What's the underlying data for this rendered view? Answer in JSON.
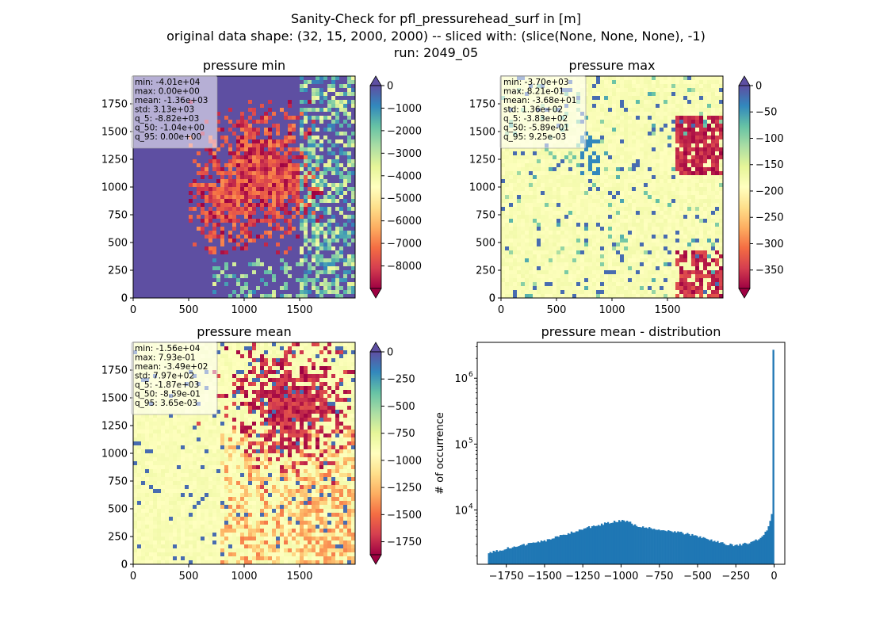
{
  "figure": {
    "suptitle_lines": [
      "Sanity-Check for pfl_pressurehead_surf in [m]",
      "original data shape: (32, 15, 2000, 2000) -- sliced with: (slice(None, None, None), -1)",
      "run: 2049_05"
    ]
  },
  "chart_data": [
    {
      "type": "heatmap",
      "title": "pressure min",
      "xlim": [
        0,
        2000
      ],
      "ylim": [
        0,
        2000
      ],
      "xticks": [
        0,
        500,
        1000,
        1500
      ],
      "yticks": [
        0,
        250,
        500,
        750,
        1000,
        1250,
        1500,
        1750
      ],
      "colormap": "Spectral",
      "colorbar": {
        "vmin": -9000,
        "vmax": 0,
        "ticks": [
          0,
          -1000,
          -2000,
          -3000,
          -4000,
          -5000,
          -6000,
          -7000,
          -8000
        ],
        "extend": "both"
      },
      "stats": [
        "min: -4.01e+04",
        "max: 0.00e+00",
        "mean: -1.36e+03",
        "std: 3.13e+03",
        "q_5: -8.82e+03",
        "q_50: -1.04e+00",
        "q_95: 0.00e+00"
      ]
    },
    {
      "type": "heatmap",
      "title": "pressure max",
      "xlim": [
        0,
        2000
      ],
      "ylim": [
        0,
        2000
      ],
      "xticks": [
        0,
        500,
        1000,
        1500
      ],
      "yticks": [
        0,
        250,
        500,
        750,
        1000,
        1250,
        1500,
        1750
      ],
      "colormap": "Spectral",
      "colorbar": {
        "vmin": -385,
        "vmax": 0,
        "ticks": [
          0,
          -50,
          -100,
          -150,
          -200,
          -250,
          -300,
          -350
        ],
        "extend": "both"
      },
      "stats": [
        "min: -3.70e+03",
        "max: 8.21e-01",
        "mean: -3.68e+01",
        "std: 1.36e+02",
        "q_5: -3.83e+02",
        "q_50: -5.89e-01",
        "q_95: 9.25e-03"
      ]
    },
    {
      "type": "heatmap",
      "title": "pressure mean",
      "xlim": [
        0,
        2000
      ],
      "ylim": [
        0,
        2000
      ],
      "xticks": [
        0,
        500,
        1000,
        1500
      ],
      "yticks": [
        0,
        250,
        500,
        750,
        1000,
        1250,
        1500,
        1750
      ],
      "colormap": "Spectral",
      "colorbar": {
        "vmin": -1870,
        "vmax": 0,
        "ticks": [
          0,
          -250,
          -500,
          -750,
          -1000,
          -1250,
          -1500,
          -1750
        ],
        "extend": "both"
      },
      "stats": [
        "min: -1.56e+04",
        "max: 7.93e-01",
        "mean: -3.49e+02",
        "std: 7.97e+02",
        "q_5: -1.87e+03",
        "q_50: -8.59e-01",
        "q_95: 3.65e-03"
      ]
    },
    {
      "type": "bar",
      "title": "pressure mean - distribution",
      "ylabel": "# of occurrence",
      "xlabel": "",
      "yscale": "log",
      "xlim": [
        -1940,
        70
      ],
      "ylim": [
        1500,
        3500000
      ],
      "xticks": [
        -1750,
        -1500,
        -1250,
        -1000,
        -750,
        -500,
        -250,
        0
      ],
      "yticks": [
        10000,
        100000,
        1000000
      ],
      "ytick_labels": [
        [
          "10",
          "4"
        ],
        [
          "10",
          "5"
        ],
        [
          "10",
          "6"
        ]
      ],
      "bar_color": "#1f77b4",
      "profile": {
        "x": [
          -1870,
          -1750,
          -1500,
          -1250,
          -1100,
          -1000,
          -950,
          -900,
          -750,
          -600,
          -500,
          -400,
          -300,
          -250,
          -150,
          -100,
          -60,
          -30,
          -15,
          0
        ],
        "y": [
          2200,
          2600,
          3400,
          5200,
          6300,
          6900,
          6600,
          5800,
          5000,
          4500,
          4000,
          3400,
          3000,
          2900,
          3200,
          3600,
          4400,
          6000,
          9000,
          13500
        ]
      },
      "bins": {
        "start": -1870,
        "end": 0,
        "count": 180
      },
      "peak_bin": {
        "x": 0,
        "count": 2700000
      }
    }
  ]
}
